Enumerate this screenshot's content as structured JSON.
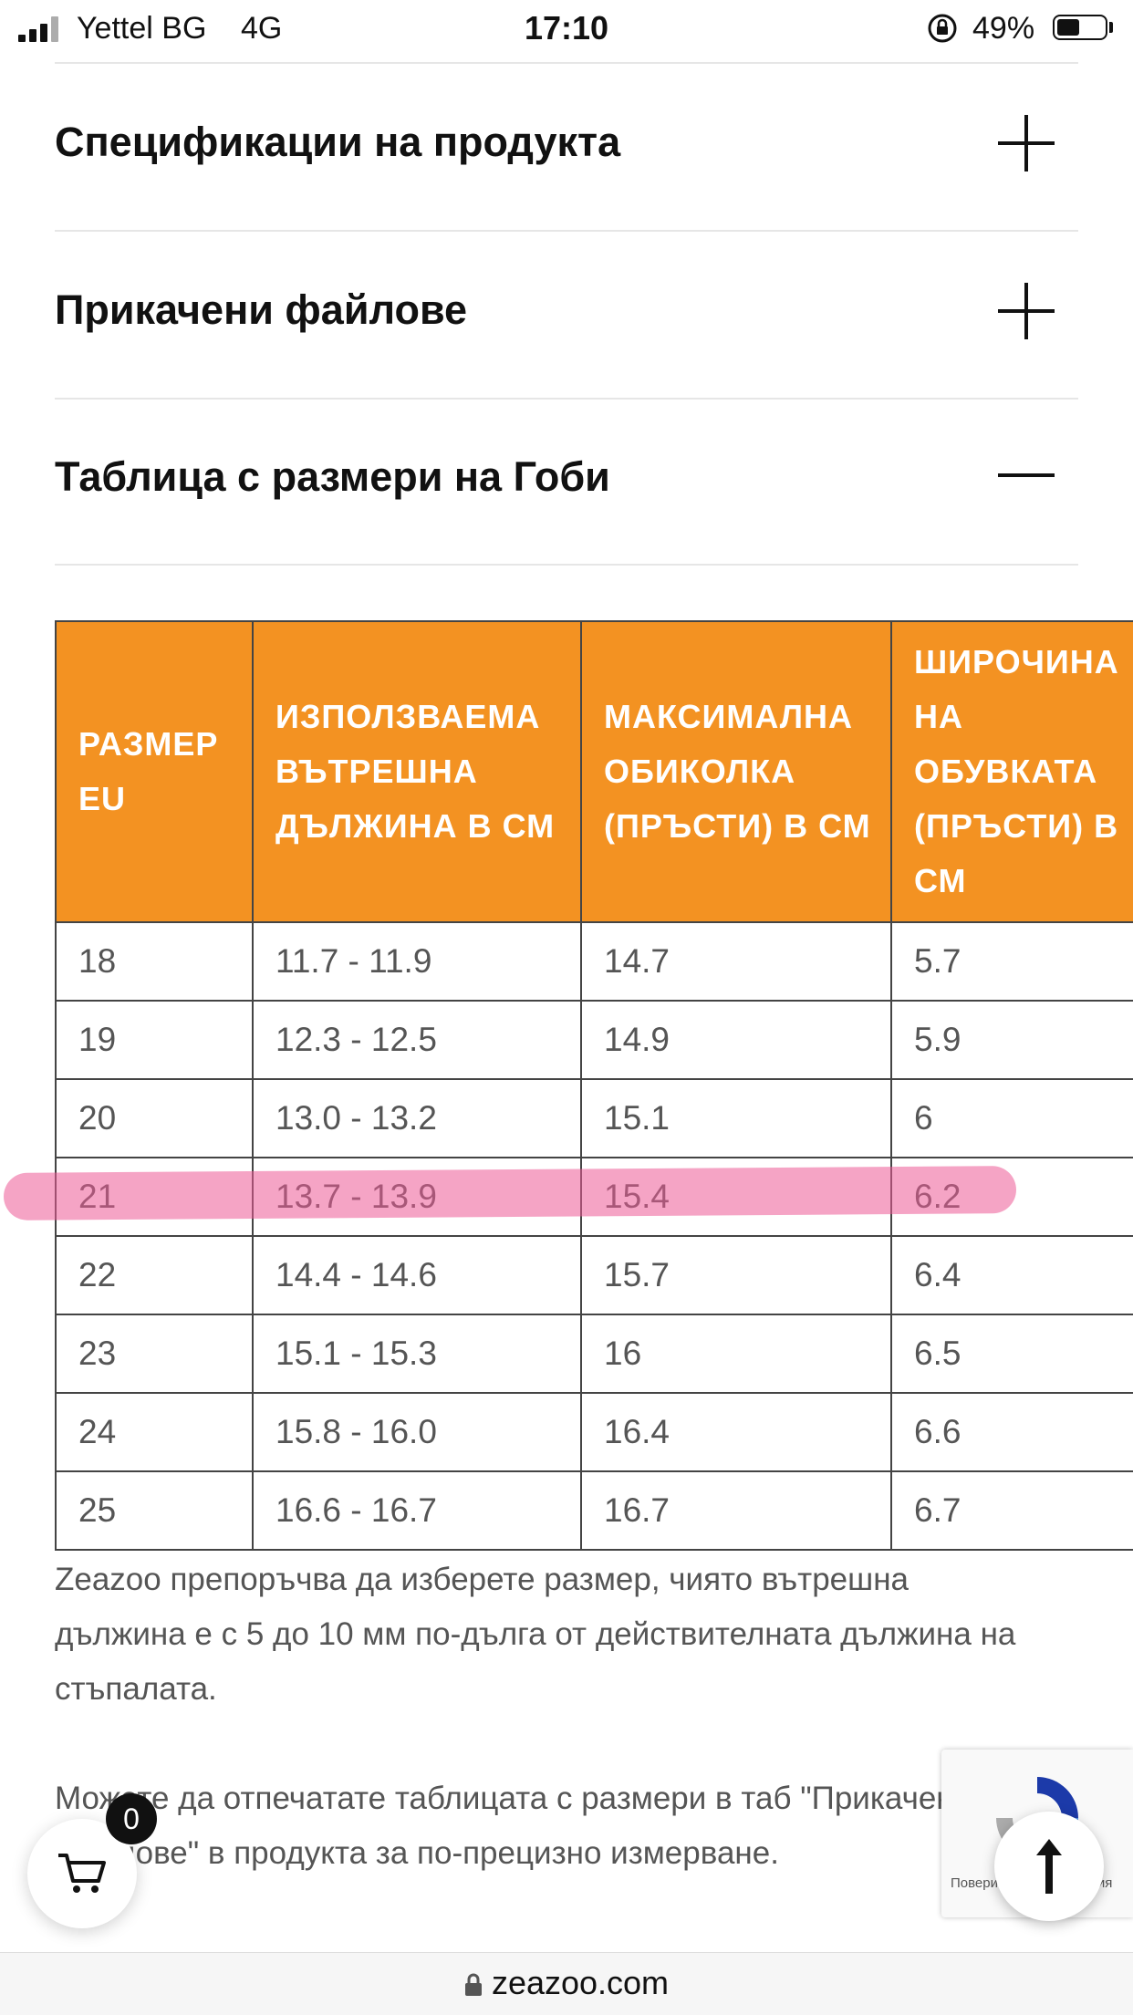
{
  "status_bar": {
    "carrier": "Yettel BG",
    "network": "4G",
    "time": "17:10",
    "battery": "49%",
    "battery_level": 0.49
  },
  "accordion": [
    {
      "title": "Спецификации на продукта",
      "state": "collapsed",
      "icon": "plus-icon"
    },
    {
      "title": "Прикачени файлове",
      "state": "collapsed",
      "icon": "plus-icon"
    },
    {
      "title": "Таблица с размери на Гоби",
      "state": "expanded",
      "icon": "minus-icon"
    }
  ],
  "size_table": {
    "header_color": "#f39222",
    "headers": [
      "РАЗМЕР EU",
      "ИЗПОЛЗВАЕМА ВЪТРЕШНА ДЪЛЖИНА В СМ",
      "МАКСИМАЛНА ОБИКОЛКА (ПРЪСТИ) В СМ",
      "ШИРОЧИНА НА ОБУВКАТА (ПРЪСТИ) В СМ"
    ],
    "rows": [
      [
        "18",
        "11.7 - 11.9",
        "14.7",
        "5.7"
      ],
      [
        "19",
        "12.3 - 12.5",
        "14.9",
        "5.9"
      ],
      [
        "20",
        "13.0 - 13.2",
        "15.1",
        "6"
      ],
      [
        "21",
        "13.7 - 13.9",
        "15.4",
        "6.2"
      ],
      [
        "22",
        "14.4 - 14.6",
        "15.7",
        "6.4"
      ],
      [
        "23",
        "15.1 - 15.3",
        "16",
        "6.5"
      ],
      [
        "24",
        "15.8 - 16.0",
        "16.4",
        "6.6"
      ],
      [
        "25",
        "16.6 - 16.7",
        "16.7",
        "6.7"
      ]
    ],
    "highlighted_row": "21",
    "highlight_color": "#ec5a96"
  },
  "notes": {
    "recommendation": "Zeazoo препоръчва да изберете размер, чиято вътрешна дължина е с 5 до 10 мм по-дълга от действителната дължина на стъпалата.",
    "print_hint": "Можете да отпечатате таблицата с размери в таб \"Прикачени файлове\" в продукта за по-прецизно измерване."
  },
  "cart": {
    "count": "0"
  },
  "recaptcha": {
    "text": "Поверителност - Условия"
  },
  "browser": {
    "url": "zeazoo.com"
  }
}
